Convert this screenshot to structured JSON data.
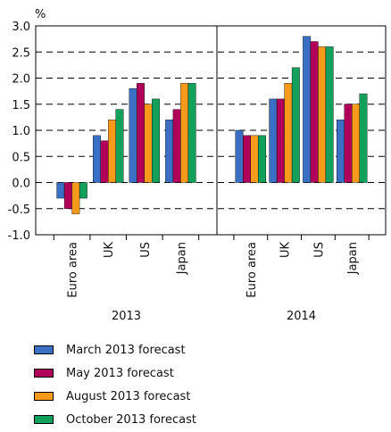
{
  "chart_data": {
    "type": "bar",
    "ylabel": "%",
    "ylim": [
      -1.0,
      3.0
    ],
    "yticks": [
      "3.0",
      "2.5",
      "2.0",
      "1.5",
      "1.0",
      "0.5",
      "0.0",
      "-0.5",
      "-1.0"
    ],
    "grid": "dashed horizontal",
    "panels": [
      {
        "year": "2013",
        "categories": [
          "Euro area",
          "UK",
          "US",
          "Japan"
        ],
        "series": [
          {
            "name": "March 2013 forecast",
            "values": [
              -0.3,
              0.9,
              1.8,
              1.2
            ]
          },
          {
            "name": "May 2013 forecast",
            "values": [
              -0.5,
              0.8,
              1.9,
              1.4
            ]
          },
          {
            "name": "August 2013 forecast",
            "values": [
              -0.6,
              1.2,
              1.5,
              1.9
            ]
          },
          {
            "name": "October 2013 forecast",
            "values": [
              -0.3,
              1.4,
              1.6,
              1.9
            ]
          }
        ]
      },
      {
        "year": "2014",
        "categories": [
          "Euro area",
          "UK",
          "US",
          "Japan"
        ],
        "series": [
          {
            "name": "March 2013 forecast",
            "values": [
              1.0,
              1.6,
              2.8,
              1.2
            ]
          },
          {
            "name": "May 2013 forecast",
            "values": [
              0.9,
              1.6,
              2.7,
              1.5
            ]
          },
          {
            "name": "August 2013 forecast",
            "values": [
              0.9,
              1.9,
              2.6,
              1.5
            ]
          },
          {
            "name": "October 2013 forecast",
            "values": [
              0.9,
              2.2,
              2.6,
              1.7
            ]
          }
        ]
      }
    ],
    "legend": {
      "placement": "bottom",
      "entries": [
        {
          "label": "March 2013 forecast",
          "color": "#3a6fc4"
        },
        {
          "label": "May 2013 forecast",
          "color": "#b0005a"
        },
        {
          "label": "August 2013 forecast",
          "color": "#f59a1b"
        },
        {
          "label": "October 2013 forecast",
          "color": "#12a05a"
        }
      ]
    }
  }
}
